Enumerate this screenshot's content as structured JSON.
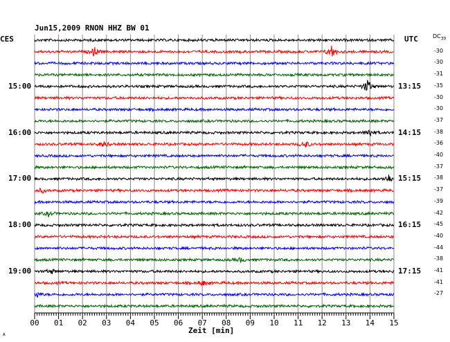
{
  "header": {
    "title": "Jun15,2009   RNON HHZ BW 01",
    "left_timezone": "CES",
    "right_timezone": "UTC",
    "dc_label": "DC",
    "dc_sub": "30"
  },
  "chart_data": {
    "type": "line",
    "title": "Jun15,2009   RNON HHZ BW 01",
    "xlabel": "Zeit [min]",
    "xlim": [
      0,
      15
    ],
    "x_ticks": [
      "00",
      "01",
      "02",
      "03",
      "04",
      "05",
      "06",
      "07",
      "08",
      "09",
      "10",
      "11",
      "12",
      "13",
      "14",
      "15"
    ],
    "grid": true,
    "colors": [
      "#000000",
      "#ff0000",
      "#0000ff",
      "#006400"
    ],
    "left_hour_labels": [
      {
        "row": 4,
        "text": "15:00"
      },
      {
        "row": 8,
        "text": "16:00"
      },
      {
        "row": 12,
        "text": "17:00"
      },
      {
        "row": 16,
        "text": "18:00"
      },
      {
        "row": 20,
        "text": "19:00"
      }
    ],
    "right_hour_labels": [
      {
        "row": 4,
        "text": "13:15"
      },
      {
        "row": 8,
        "text": "14:15"
      },
      {
        "row": 12,
        "text": "15:15"
      },
      {
        "row": 16,
        "text": "16:15"
      },
      {
        "row": 20,
        "text": "17:15"
      }
    ],
    "dc_offsets": [
      "-30",
      "-30",
      "-31",
      "-35",
      "-30",
      "-30",
      "-37",
      "-38",
      "-36",
      "-40",
      "-37",
      "-38",
      "-37",
      "-39",
      "-42",
      "-45",
      "-40",
      "-44",
      "-38",
      "-41",
      "-41",
      "-27"
    ],
    "events": [
      {
        "row": 1,
        "minute": 2.5,
        "amp": 6
      },
      {
        "row": 1,
        "minute": 12.4,
        "amp": 9
      },
      {
        "row": 4,
        "minute": 13.9,
        "amp": 10
      },
      {
        "row": 8,
        "minute": 14.0,
        "amp": 6
      },
      {
        "row": 9,
        "minute": 2.9,
        "amp": 4
      },
      {
        "row": 9,
        "minute": 11.3,
        "amp": 5
      },
      {
        "row": 12,
        "minute": 14.8,
        "amp": 7
      },
      {
        "row": 13,
        "minute": 0.3,
        "amp": 3
      },
      {
        "row": 15,
        "minute": 0.6,
        "amp": 3
      },
      {
        "row": 19,
        "minute": 8.6,
        "amp": 3
      },
      {
        "row": 20,
        "minute": 0.7,
        "amp": 3
      },
      {
        "row": 21,
        "minute": 7.0,
        "amp": 4
      },
      {
        "row": 22,
        "minute": 0.1,
        "amp": 4
      }
    ]
  },
  "footer": {
    "corner_mark": "A"
  }
}
